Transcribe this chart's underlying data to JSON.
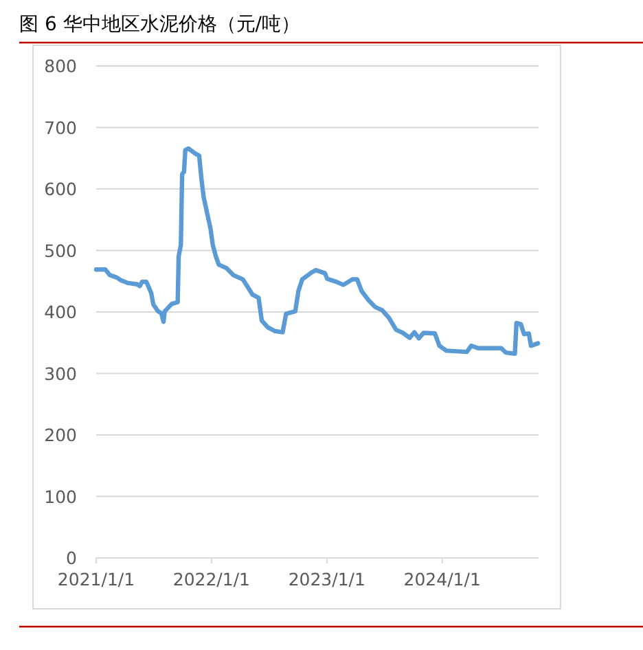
{
  "chart_data": {
    "type": "line",
    "title": "图 6  华中地区水泥价格（元/吨）",
    "x": [
      "2021-01-01",
      "2021-01-30",
      "2021-02-13",
      "2021-03-07",
      "2021-03-22",
      "2021-04-12",
      "2021-05-11",
      "2021-05-19",
      "2021-05-26",
      "2021-06-09",
      "2021-06-24",
      "2021-07-01",
      "2021-07-16",
      "2021-07-26",
      "2021-08-02",
      "2021-08-06",
      "2021-08-28",
      "2021-09-16",
      "2021-09-19",
      "2021-09-26",
      "2021-09-30",
      "2021-10-06",
      "2021-10-10",
      "2021-10-20",
      "2021-11-09",
      "2021-11-23",
      "2021-11-30",
      "2021-12-07",
      "2021-12-18",
      "2021-12-29",
      "2022-01-05",
      "2022-01-15",
      "2022-01-24",
      "2022-02-18",
      "2022-03-11",
      "2022-04-10",
      "2022-04-24",
      "2022-05-11",
      "2022-05-30",
      "2022-06-09",
      "2022-06-28",
      "2022-07-20",
      "2022-08-14",
      "2022-08-25",
      "2022-09-23",
      "2022-10-03",
      "2022-10-15",
      "2022-11-13",
      "2022-11-27",
      "2022-12-26",
      "2023-01-02",
      "2023-01-31",
      "2023-02-22",
      "2023-03-23",
      "2023-04-07",
      "2023-04-21",
      "2023-05-13",
      "2023-06-03",
      "2023-06-25",
      "2023-07-17",
      "2023-08-08",
      "2023-08-29",
      "2023-09-20",
      "2023-10-05",
      "2023-10-19",
      "2023-11-03",
      "2023-12-09",
      "2023-12-23",
      "2024-01-14",
      "2024-03-19",
      "2024-04-02",
      "2024-04-24",
      "2024-07-06",
      "2024-07-20",
      "2024-08-18",
      "2024-08-23",
      "2024-09-06",
      "2024-09-16",
      "2024-10-01",
      "2024-10-08",
      "2024-10-30"
    ],
    "series": [
      {
        "color": "#5b9bd5",
        "values": [
          469,
          469,
          460,
          456,
          451,
          447,
          445,
          442,
          449,
          449,
          431,
          412,
          401,
          398,
          384,
          401,
          413,
          416,
          490,
          509,
          624,
          628,
          663,
          666,
          658,
          654,
          617,
          587,
          561,
          535,
          509,
          490,
          477,
          471,
          460,
          453,
          442,
          428,
          423,
          386,
          375,
          369,
          367,
          397,
          401,
          434,
          453,
          464,
          468,
          463,
          454,
          449,
          444,
          453,
          453,
          434,
          419,
          408,
          403,
          390,
          371,
          366,
          358,
          367,
          357,
          366,
          365,
          345,
          337,
          335,
          345,
          341,
          341,
          334,
          332,
          382,
          380,
          364,
          365,
          345,
          349
        ]
      }
    ],
    "xlim": [
      "2021-01-01",
      "2024-11-01"
    ],
    "xticks": [
      {
        "value": "2021-01-01",
        "label": "2021/1/1"
      },
      {
        "value": "2022-01-01",
        "label": "2022/1/1"
      },
      {
        "value": "2023-01-01",
        "label": "2023/1/1"
      },
      {
        "value": "2024-01-01",
        "label": "2024/1/1"
      }
    ],
    "ylim": [
      0,
      800
    ],
    "yticks": [
      0,
      100,
      200,
      300,
      400,
      500,
      600,
      700,
      800
    ],
    "grid": "y",
    "marker": "none",
    "line_style": "solid"
  }
}
